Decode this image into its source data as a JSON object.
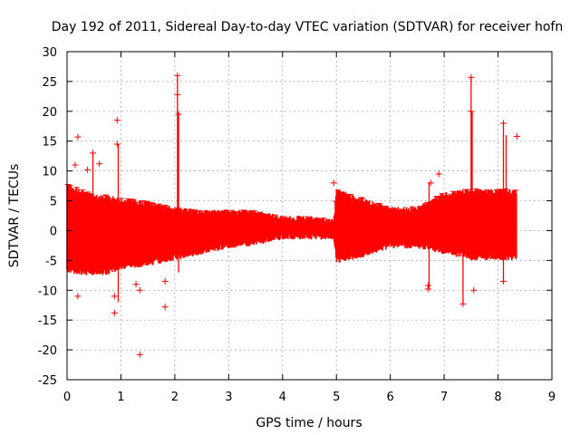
{
  "chart_data": {
    "type": "scatter",
    "title": "Day 192 of 2011, Sidereal Day-to-day VTEC variation (SDTVAR) for receiver hofn",
    "xlabel": "GPS time / hours",
    "ylabel": "SDTVAR / TECUs",
    "xlim": [
      0,
      9
    ],
    "ylim": [
      -25,
      30
    ],
    "x_ticks": [
      0,
      1,
      2,
      3,
      4,
      5,
      6,
      7,
      8,
      9
    ],
    "y_ticks": [
      -25,
      -20,
      -15,
      -10,
      -5,
      0,
      5,
      10,
      15,
      20,
      25,
      30
    ],
    "grid": true,
    "marker": "+",
    "series_color": "#ff0000",
    "band": [
      {
        "x": 0.0,
        "lo": -7.0,
        "hi": 8.0
      },
      {
        "x": 0.25,
        "lo": -7.5,
        "hi": 7.0
      },
      {
        "x": 0.5,
        "lo": -7.5,
        "hi": 6.0
      },
      {
        "x": 0.75,
        "lo": -7.5,
        "hi": 6.0
      },
      {
        "x": 1.0,
        "lo": -6.5,
        "hi": 5.5
      },
      {
        "x": 1.5,
        "lo": -6.0,
        "hi": 5.0
      },
      {
        "x": 2.0,
        "lo": -5.0,
        "hi": 4.0
      },
      {
        "x": 2.5,
        "lo": -4.0,
        "hi": 3.5
      },
      {
        "x": 3.0,
        "lo": -3.0,
        "hi": 3.5
      },
      {
        "x": 3.5,
        "lo": -2.5,
        "hi": 3.5
      },
      {
        "x": 4.0,
        "lo": -1.5,
        "hi": 2.5
      },
      {
        "x": 4.5,
        "lo": -1.5,
        "hi": 2.5
      },
      {
        "x": 4.95,
        "lo": -1.5,
        "hi": 2.0
      },
      {
        "x": 5.0,
        "lo": -5.5,
        "hi": 7.0
      },
      {
        "x": 5.5,
        "lo": -4.5,
        "hi": 5.5
      },
      {
        "x": 6.0,
        "lo": -3.0,
        "hi": 4.0
      },
      {
        "x": 6.5,
        "lo": -3.0,
        "hi": 4.0
      },
      {
        "x": 7.0,
        "lo": -4.0,
        "hi": 6.5
      },
      {
        "x": 7.5,
        "lo": -5.0,
        "hi": 7.0
      },
      {
        "x": 8.0,
        "lo": -5.0,
        "hi": 7.0
      },
      {
        "x": 8.35,
        "lo": -5.0,
        "hi": 7.0
      }
    ],
    "outliers": [
      {
        "x": 0.2,
        "y": 15.7
      },
      {
        "x": 0.2,
        "y": -11.0
      },
      {
        "x": 0.88,
        "y": -13.8
      },
      {
        "x": 0.93,
        "y": 18.5
      },
      {
        "x": 0.93,
        "y": 14.5
      },
      {
        "x": 1.35,
        "y": -20.8
      },
      {
        "x": 1.82,
        "y": -12.8
      },
      {
        "x": 2.05,
        "y": 26.0
      },
      {
        "x": 2.05,
        "y": 22.8
      },
      {
        "x": 2.07,
        "y": 19.5
      },
      {
        "x": 0.48,
        "y": 13.0
      },
      {
        "x": 0.38,
        "y": 10.2
      },
      {
        "x": 0.15,
        "y": 11.0
      },
      {
        "x": 0.6,
        "y": 11.2
      },
      {
        "x": 1.28,
        "y": -9.0
      },
      {
        "x": 1.35,
        "y": -10.0
      },
      {
        "x": 1.82,
        "y": -8.5
      },
      {
        "x": 6.7,
        "y": -9.8
      },
      {
        "x": 6.75,
        "y": 8.0
      },
      {
        "x": 6.9,
        "y": 9.5
      },
      {
        "x": 7.35,
        "y": -12.3
      },
      {
        "x": 7.55,
        "y": -10.0
      },
      {
        "x": 7.5,
        "y": 25.7
      },
      {
        "x": 7.5,
        "y": 20.0
      },
      {
        "x": 8.1,
        "y": 18.0
      },
      {
        "x": 8.35,
        "y": 15.8
      },
      {
        "x": 8.1,
        "y": -8.5
      },
      {
        "x": 0.88,
        "y": -11.0
      },
      {
        "x": 4.95,
        "y": 8.0
      },
      {
        "x": 6.7,
        "y": -9.2
      }
    ],
    "spikes": [
      {
        "x": 2.05,
        "lo": 0.0,
        "hi": 26.0
      },
      {
        "x": 2.07,
        "lo": -7.0,
        "hi": 19.5
      },
      {
        "x": 7.5,
        "lo": 0.0,
        "hi": 25.7
      },
      {
        "x": 7.52,
        "lo": -3.0,
        "hi": 20.0
      },
      {
        "x": 0.95,
        "lo": -12.0,
        "hi": 14.5
      },
      {
        "x": 8.1,
        "lo": -8.5,
        "hi": 18.0
      },
      {
        "x": 8.15,
        "lo": -5.0,
        "hi": 16.0
      },
      {
        "x": 0.48,
        "lo": 0.0,
        "hi": 13.0
      },
      {
        "x": 6.72,
        "lo": -9.8,
        "hi": 8.0
      },
      {
        "x": 7.35,
        "lo": -12.3,
        "hi": 7.0
      }
    ]
  }
}
